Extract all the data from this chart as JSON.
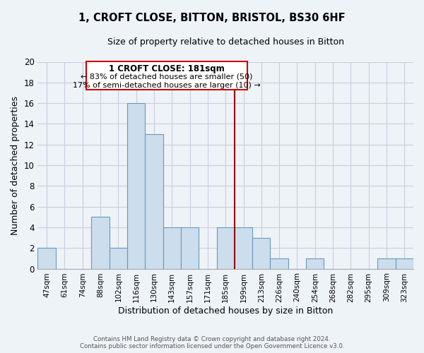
{
  "title": "1, CROFT CLOSE, BITTON, BRISTOL, BS30 6HF",
  "subtitle": "Size of property relative to detached houses in Bitton",
  "xlabel": "Distribution of detached houses by size in Bitton",
  "ylabel": "Number of detached properties",
  "footer_line1": "Contains HM Land Registry data © Crown copyright and database right 2024.",
  "footer_line2": "Contains public sector information licensed under the Open Government Licence v3.0.",
  "bin_labels": [
    "47sqm",
    "61sqm",
    "74sqm",
    "88sqm",
    "102sqm",
    "116sqm",
    "130sqm",
    "143sqm",
    "157sqm",
    "171sqm",
    "185sqm",
    "199sqm",
    "213sqm",
    "226sqm",
    "240sqm",
    "254sqm",
    "268sqm",
    "282sqm",
    "295sqm",
    "309sqm",
    "323sqm"
  ],
  "bar_heights": [
    2,
    0,
    0,
    5,
    2,
    16,
    13,
    4,
    4,
    0,
    4,
    4,
    3,
    1,
    0,
    1,
    0,
    0,
    0,
    1,
    1
  ],
  "bar_color": "#ccdded",
  "bar_edge_color": "#6699bb",
  "vline_x_index": 10.5,
  "vline_color": "#990000",
  "ylim": [
    0,
    20
  ],
  "yticks": [
    0,
    2,
    4,
    6,
    8,
    10,
    12,
    14,
    16,
    18,
    20
  ],
  "annotation_title": "1 CROFT CLOSE: 181sqm",
  "annotation_line1": "← 83% of detached houses are smaller (50)",
  "annotation_line2": "17% of semi-detached houses are larger (10) →",
  "annotation_box_facecolor": "#ffffff",
  "annotation_box_edgecolor": "#cc0000",
  "background_color": "#eef3f8",
  "grid_color": "#ccccdd",
  "spine_color": "#aaaaaa"
}
